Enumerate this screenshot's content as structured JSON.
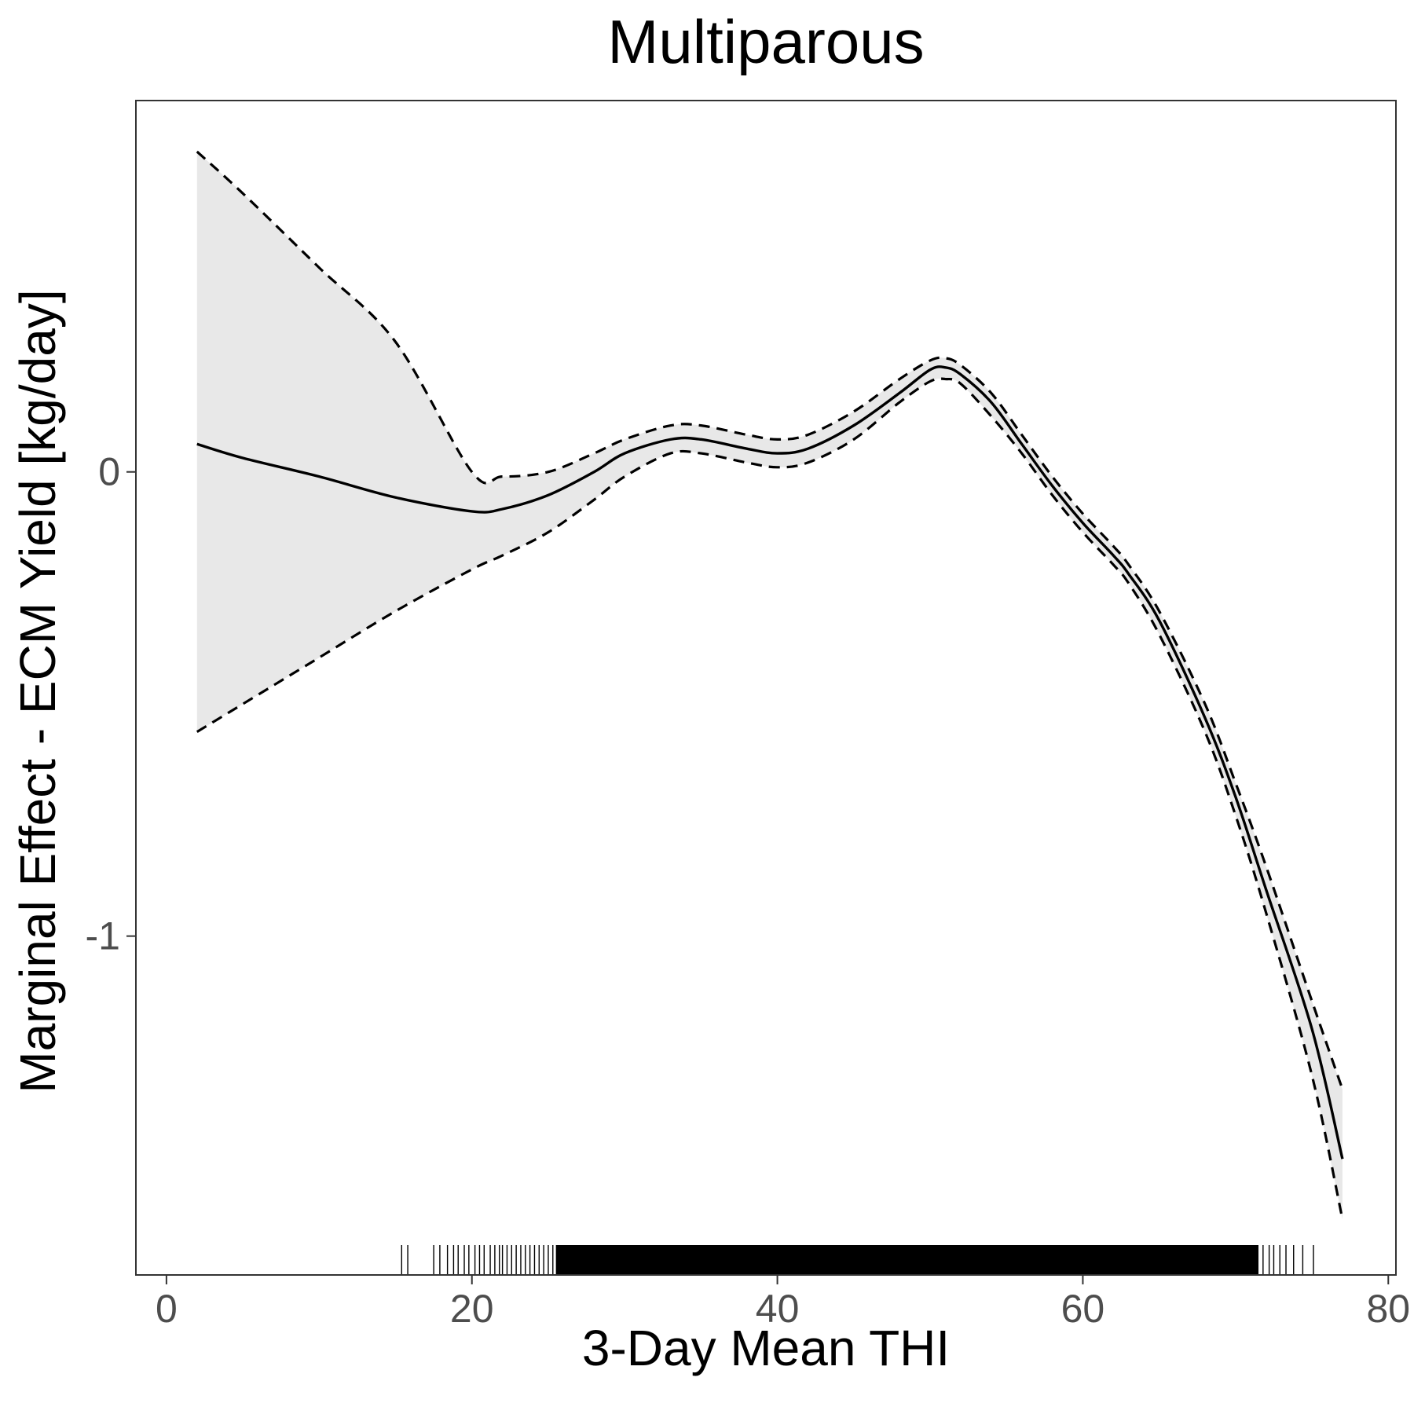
{
  "chart_data": {
    "type": "line",
    "title": "Multiparous",
    "xlabel": "3-Day Mean THI",
    "ylabel": "Marginal Effect - ECM Yield [kg/day]",
    "xlim": [
      -2,
      80.5
    ],
    "ylim": [
      -1.73,
      0.8
    ],
    "x_ticks": [
      0,
      20,
      40,
      60,
      80
    ],
    "y_ticks": [
      0,
      -1
    ],
    "x_tick_labels": [
      "0",
      "20",
      "40",
      "60",
      "80"
    ],
    "y_tick_labels": [
      "0",
      "-1"
    ],
    "grid": false,
    "legend": "none",
    "colors": {
      "line": "#000000",
      "band": "#e8e8e8",
      "panel_border": "#333333",
      "tick_label": "#4d4d4d"
    },
    "x": [
      2,
      5,
      10,
      15,
      20,
      22,
      25,
      28,
      30,
      33,
      35,
      38,
      40,
      42,
      45,
      48,
      50,
      51,
      52,
      54,
      56,
      58,
      60,
      62,
      63,
      65,
      68,
      70,
      72,
      75,
      77
    ],
    "series": [
      {
        "role": "estimate",
        "style": "solid",
        "values": [
          0.06,
          0.03,
          -0.01,
          -0.055,
          -0.085,
          -0.08,
          -0.05,
          0.0,
          0.04,
          0.07,
          0.07,
          0.05,
          0.04,
          0.05,
          0.1,
          0.17,
          0.22,
          0.225,
          0.21,
          0.15,
          0.06,
          -0.03,
          -0.11,
          -0.18,
          -0.22,
          -0.32,
          -0.53,
          -0.7,
          -0.9,
          -1.2,
          -1.48
        ]
      },
      {
        "role": "upper",
        "style": "dashed",
        "values": [
          0.69,
          0.6,
          0.44,
          0.28,
          0.0,
          -0.01,
          0.0,
          0.04,
          0.07,
          0.1,
          0.1,
          0.08,
          0.07,
          0.08,
          0.13,
          0.2,
          0.24,
          0.245,
          0.23,
          0.17,
          0.08,
          -0.01,
          -0.09,
          -0.16,
          -0.2,
          -0.3,
          -0.5,
          -0.67,
          -0.85,
          -1.14,
          -1.33
        ]
      },
      {
        "role": "lower",
        "style": "dashed",
        "values": [
          -0.56,
          -0.5,
          -0.4,
          -0.3,
          -0.21,
          -0.18,
          -0.13,
          -0.06,
          -0.01,
          0.04,
          0.04,
          0.02,
          0.01,
          0.02,
          0.07,
          0.15,
          0.195,
          0.2,
          0.19,
          0.12,
          0.04,
          -0.05,
          -0.13,
          -0.2,
          -0.24,
          -0.35,
          -0.56,
          -0.74,
          -0.95,
          -1.3,
          -1.61
        ]
      }
    ],
    "rug": {
      "x_min": 15.4,
      "x_max": 75.1,
      "dense_from": 25.5,
      "dense_to": 71.5,
      "sparse_x": [
        15.4,
        15.8,
        17.5,
        17.9,
        18.4,
        18.8,
        19.1,
        19.5,
        19.8,
        20.2,
        20.5,
        20.8,
        21.2,
        21.5,
        21.8,
        22.0,
        22.3,
        22.6,
        22.9,
        23.2,
        23.5,
        23.8,
        24.1,
        24.4,
        24.7,
        25.0,
        25.3,
        71.8,
        72.2,
        72.5,
        72.9,
        73.3,
        73.8,
        74.4,
        75.1
      ]
    }
  }
}
